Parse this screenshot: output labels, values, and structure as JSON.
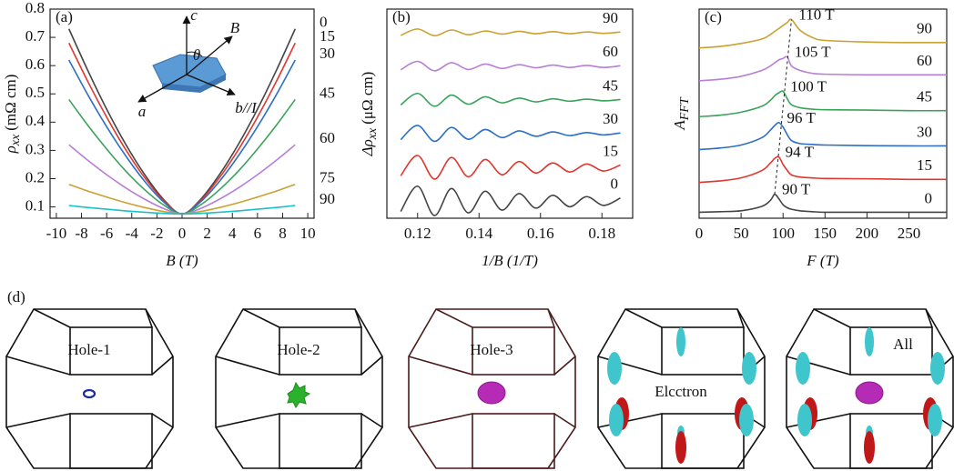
{
  "chart_data": [
    {
      "type": "line",
      "panel": "(a)",
      "xlabel": "B (T)",
      "ylabel": "ρ",
      "ylabel_sub": "xx",
      "ylabel_unit": "(mΩ cm)",
      "xlim": [
        -10.5,
        10.5
      ],
      "xticks": [
        -10,
        -8,
        -6,
        -4,
        -2,
        0,
        2,
        4,
        6,
        8,
        10
      ],
      "ylim": [
        0.06,
        0.8
      ],
      "yticks": [
        0.1,
        0.2,
        0.3,
        0.4,
        0.5,
        0.6,
        0.7,
        0.8
      ],
      "annotations": [
        "c",
        "B",
        "θ",
        "a",
        "b//I"
      ],
      "x": [
        -9,
        -7.5,
        -6,
        -4.5,
        -3,
        -1.5,
        0,
        1.5,
        3,
        4.5,
        6,
        7.5,
        9
      ],
      "series": [
        {
          "name": "0",
          "color": "#444444",
          "values": [
            0.73,
            0.583,
            0.446,
            0.323,
            0.216,
            0.128,
            0.075,
            0.128,
            0.216,
            0.323,
            0.446,
            0.583,
            0.73
          ]
        },
        {
          "name": "15",
          "color": "#e0362c",
          "values": [
            0.68,
            0.544,
            0.418,
            0.304,
            0.205,
            0.124,
            0.075,
            0.124,
            0.205,
            0.304,
            0.418,
            0.544,
            0.68
          ]
        },
        {
          "name": "30",
          "color": "#2c6fc4",
          "values": [
            0.62,
            0.497,
            0.384,
            0.282,
            0.192,
            0.119,
            0.075,
            0.119,
            0.192,
            0.282,
            0.384,
            0.497,
            0.62
          ]
        },
        {
          "name": "45",
          "color": "#3aa35a",
          "values": [
            0.48,
            0.389,
            0.305,
            0.228,
            0.162,
            0.108,
            0.075,
            0.108,
            0.162,
            0.228,
            0.305,
            0.389,
            0.48
          ]
        },
        {
          "name": "60",
          "color": "#b77fd6",
          "values": [
            0.32,
            0.265,
            0.214,
            0.168,
            0.128,
            0.095,
            0.075,
            0.095,
            0.128,
            0.168,
            0.214,
            0.265,
            0.32
          ]
        },
        {
          "name": "75",
          "color": "#c9a232",
          "values": [
            0.18,
            0.156,
            0.135,
            0.115,
            0.098,
            0.084,
            0.075,
            0.084,
            0.098,
            0.115,
            0.135,
            0.156,
            0.18
          ]
        },
        {
          "name": "90",
          "color": "#19c2c8",
          "values": [
            0.105,
            0.098,
            0.092,
            0.086,
            0.081,
            0.077,
            0.075,
            0.077,
            0.081,
            0.086,
            0.092,
            0.098,
            0.105
          ]
        }
      ]
    },
    {
      "type": "line",
      "panel": "(b)",
      "xlabel": "1/B (1/T)",
      "ylabel": "Δρ",
      "ylabel_sub": "xx",
      "ylabel_unit": "(μΩ cm)",
      "xlim": [
        0.11,
        0.19
      ],
      "xticks": [
        0.12,
        0.14,
        0.16,
        0.18
      ],
      "ylim": [
        0,
        6.2
      ],
      "x": [
        0.1145,
        0.12,
        0.1255,
        0.131,
        0.1365,
        0.142,
        0.1475,
        0.153,
        0.1585,
        0.164,
        0.1695,
        0.175,
        0.1805,
        0.186
      ],
      "series": [
        {
          "name": "0",
          "color": "#444444",
          "values": [
            0.2,
            0.95,
            0.08,
            0.88,
            0.16,
            0.8,
            0.24,
            0.73,
            0.3,
            0.68,
            0.34,
            0.64,
            0.38,
            0.6
          ]
        },
        {
          "name": "15",
          "color": "#e0362c",
          "values": [
            1.26,
            1.86,
            1.16,
            1.8,
            1.23,
            1.74,
            1.29,
            1.68,
            1.34,
            1.64,
            1.37,
            1.61,
            1.4,
            1.58
          ]
        },
        {
          "name": "30",
          "color": "#2c6fc4",
          "values": [
            2.33,
            2.75,
            2.28,
            2.69,
            2.34,
            2.63,
            2.39,
            2.59,
            2.43,
            2.56,
            2.45,
            2.54,
            2.47,
            2.53
          ]
        },
        {
          "name": "45",
          "color": "#3aa35a",
          "values": [
            3.36,
            3.7,
            3.32,
            3.65,
            3.38,
            3.6,
            3.42,
            3.56,
            3.45,
            3.54,
            3.47,
            3.53,
            3.48,
            3.52
          ]
        },
        {
          "name": "60",
          "color": "#b77fd6",
          "values": [
            4.4,
            4.65,
            4.37,
            4.61,
            4.41,
            4.57,
            4.44,
            4.55,
            4.46,
            4.54,
            4.47,
            4.53,
            4.47,
            4.52
          ]
        },
        {
          "name": "90",
          "color": "#c9a232",
          "values": [
            5.42,
            5.61,
            5.41,
            5.58,
            5.44,
            5.55,
            5.46,
            5.54,
            5.47,
            5.53,
            5.47,
            5.52,
            5.48,
            5.52
          ]
        }
      ]
    },
    {
      "type": "line",
      "panel": "(c)",
      "xlabel": "F (T)",
      "ylabel": "A",
      "ylabel_sub": "FFT",
      "xlim": [
        0,
        295
      ],
      "xticks": [
        0,
        50,
        100,
        150,
        200,
        250
      ],
      "ylim": [
        0,
        7
      ],
      "x": [
        0,
        25,
        50,
        75,
        85,
        90,
        95,
        100,
        105,
        110,
        120,
        135,
        150,
        200,
        250,
        295
      ],
      "series": [
        {
          "name": "0",
          "color": "#444444",
          "peak": {
            "value": 90,
            "label": "90 T"
          },
          "values": [
            0.2,
            0.22,
            0.25,
            0.4,
            0.6,
            0.8,
            0.65,
            0.45,
            0.35,
            0.3,
            0.25,
            0.22,
            0.2,
            0.2,
            0.2,
            0.2
          ]
        },
        {
          "name": "15",
          "color": "#e0362c",
          "peak": {
            "value": 94,
            "label": "94 T"
          },
          "values": [
            1.2,
            1.25,
            1.35,
            1.6,
            1.85,
            2.0,
            2.05,
            1.8,
            1.6,
            1.45,
            1.38,
            1.35,
            1.33,
            1.32,
            1.3,
            1.3
          ]
        },
        {
          "name": "30",
          "color": "#2c6fc4",
          "peak": {
            "value": 96,
            "label": "96 T"
          },
          "values": [
            2.3,
            2.35,
            2.45,
            2.7,
            2.95,
            3.1,
            3.2,
            3.05,
            2.8,
            2.6,
            2.5,
            2.47,
            2.45,
            2.43,
            2.42,
            2.42
          ]
        },
        {
          "name": "45",
          "color": "#3aa35a",
          "peak": {
            "value": 100,
            "label": "100 T"
          },
          "values": [
            3.4,
            3.45,
            3.55,
            3.75,
            3.95,
            4.1,
            4.2,
            4.25,
            4.0,
            3.8,
            3.7,
            3.65,
            3.63,
            3.62,
            3.6,
            3.6
          ]
        },
        {
          "name": "60",
          "color": "#b77fd6",
          "peak": {
            "value": 105,
            "label": "105 T"
          },
          "values": [
            4.6,
            4.65,
            4.75,
            4.95,
            5.1,
            5.2,
            5.3,
            5.35,
            5.4,
            5.1,
            4.95,
            4.85,
            4.82,
            4.8,
            4.8,
            4.8
          ]
        },
        {
          "name": "90",
          "color": "#c9a232",
          "peak": {
            "value": 110,
            "label": "110 T"
          },
          "values": [
            5.7,
            5.75,
            5.85,
            6.0,
            6.15,
            6.25,
            6.35,
            6.45,
            6.55,
            6.65,
            6.3,
            6.05,
            5.95,
            5.9,
            5.88,
            5.88
          ]
        }
      ]
    }
  ],
  "panel_d": {
    "label": "(d)",
    "items": [
      "Hole-1",
      "Hole-2",
      "Hole-3",
      "Elcctron",
      "All"
    ]
  }
}
